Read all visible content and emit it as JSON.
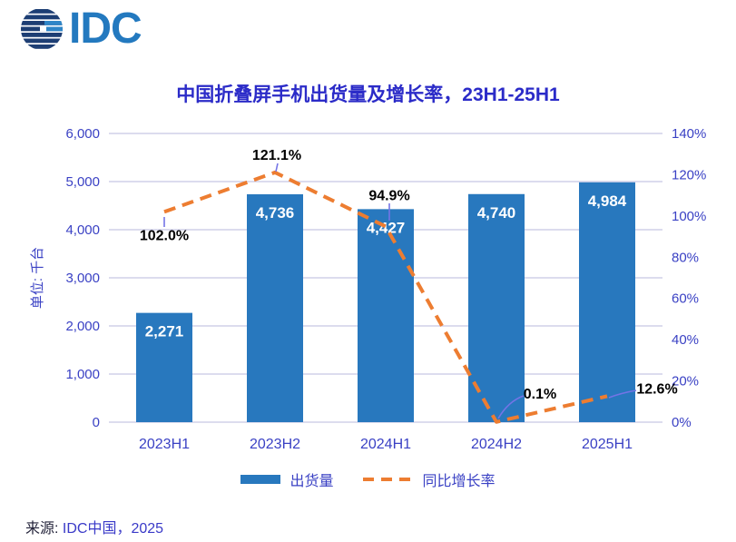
{
  "logo": {
    "text": "IDC"
  },
  "legend": {
    "bars": "出货量",
    "line": "同比增长率"
  },
  "footer": {
    "prefix": "来源: ",
    "source": "IDC中国，2025"
  },
  "colors": {
    "bar": "#2878BE",
    "line": "#ED7D31",
    "axis_text": "#3A41C4",
    "title_text": "#2B2BC8",
    "gridline": "#C6C6E4",
    "bar_label": "#FFFFFF",
    "growth_label": "#000000",
    "leader": "#7474E6",
    "logo_navy": "#1D3E74",
    "logo_blue": "#2F86C8"
  },
  "chart_data": {
    "type": "bar+line combo",
    "title": "中国折叠屏手机出货量及增长率，23H1-25H1",
    "categories": [
      "2023H1",
      "2023H2",
      "2024H1",
      "2024H2",
      "2025H1"
    ],
    "series": [
      {
        "name": "出货量",
        "type": "bar",
        "axis": "left",
        "values": [
          2271,
          4736,
          4427,
          4740,
          4984
        ],
        "labels": [
          "2,271",
          "4,736",
          "4,427",
          "4,740",
          "4,984"
        ]
      },
      {
        "name": "同比增长率",
        "type": "line",
        "axis": "right",
        "values": [
          102.0,
          121.1,
          94.9,
          0.1,
          12.6
        ],
        "labels": [
          "102.0%",
          "121.1%",
          "94.9%",
          "0.1%",
          "12.6%"
        ]
      }
    ],
    "left_axis": {
      "title": "单位: 千台",
      "min": 0,
      "max": 6000,
      "step": 1000
    },
    "right_axis": {
      "min": 0,
      "max": 140,
      "step": 20,
      "format": "percent"
    },
    "left_ticks": [
      "0",
      "1,000",
      "2,000",
      "3,000",
      "4,000",
      "5,000",
      "6,000"
    ],
    "right_ticks": [
      "0%",
      "20%",
      "40%",
      "60%",
      "80%",
      "100%",
      "120%",
      "140%"
    ],
    "grid": true,
    "legend_position": "bottom"
  }
}
